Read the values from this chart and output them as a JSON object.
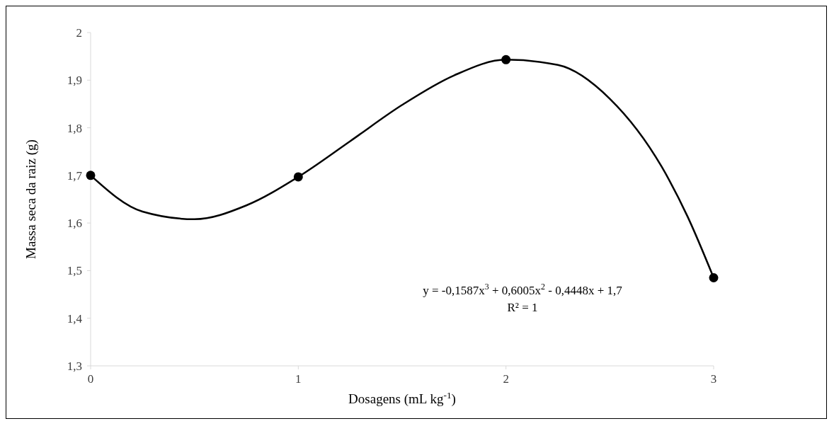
{
  "chart_data": {
    "type": "scatter",
    "xlabel": "Dosagens (mL kg$^{-1}$)",
    "ylabel": "Massa seca da raiz (g)",
    "x": [
      0,
      1,
      2,
      3
    ],
    "xlim": [
      0,
      3
    ],
    "xticks": [
      0,
      1,
      2,
      3
    ],
    "ylim": [
      1.3,
      2
    ],
    "yticks": [
      {
        "value": 1.3,
        "label": "1,3"
      },
      {
        "value": 1.4,
        "label": "1,4"
      },
      {
        "value": 1.5,
        "label": "1,5"
      },
      {
        "value": 1.6,
        "label": "1,6"
      },
      {
        "value": 1.7,
        "label": "1,7"
      },
      {
        "value": 1.8,
        "label": "1,8"
      },
      {
        "value": 1.9,
        "label": "1,9"
      },
      {
        "value": 2,
        "label": "2"
      }
    ],
    "series": [
      {
        "color": "#000000",
        "marker": "circle",
        "values": [
          1.7,
          1.697,
          1.943,
          1.485
        ]
      },
      {
        "type": "line",
        "color": "#000000",
        "marker": "none",
        "x": [
          0,
          0.25,
          0.5,
          0.75,
          1,
          1.25,
          1.5,
          1.75,
          2,
          2.25,
          2.5,
          2.75,
          2.875,
          3
        ],
        "values": [
          1.7,
          1.624,
          1.608,
          1.637,
          1.697,
          1.772,
          1.848,
          1.91,
          1.943,
          1.932,
          1.861,
          1.718,
          1.613,
          1.485
        ]
      }
    ],
    "annotations": [
      "y = -0,1587x$^{3}$ + 0,6005x$^{2}$ - 0,4448x + 1,7",
      "R² = 1"
    ]
  }
}
